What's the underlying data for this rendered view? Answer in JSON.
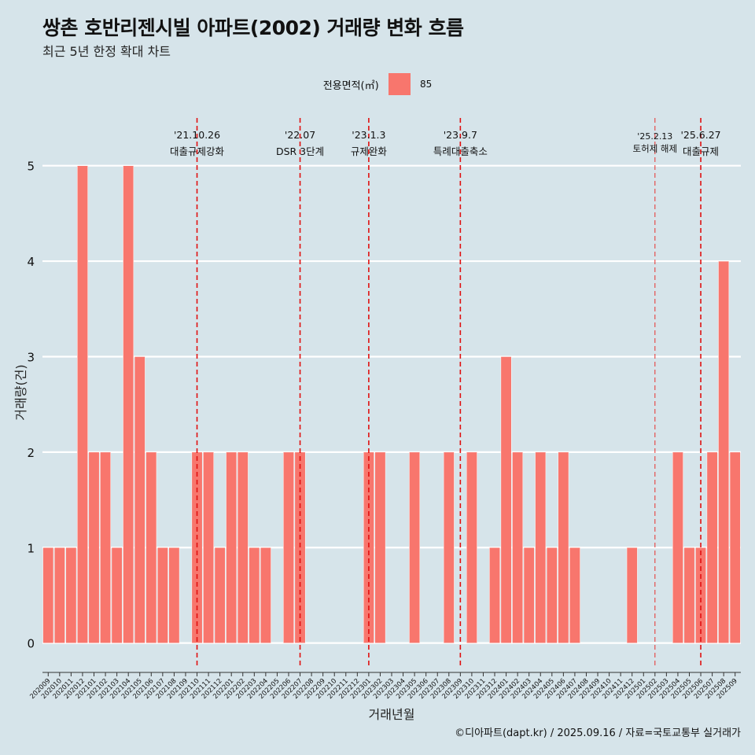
{
  "title": "쌍촌 호반리젠시빌 아파트(2002) 거래량 변화 흐름",
  "subtitle": "최근 5년 한정 확대 차트",
  "caption": "©디아파트(dapt.kr) / 2025.09.16 / 자료=국토교통부 실거래가",
  "legend": {
    "title": "전용면적(㎡)",
    "label": "85",
    "color": "#f8766d"
  },
  "chart_data": {
    "type": "bar",
    "xlabel": "거래년월",
    "ylabel": "거래량(건)",
    "ylim": [
      -0.25,
      5.5
    ],
    "yticks": [
      0,
      1,
      2,
      3,
      4,
      5
    ],
    "grid": true,
    "legend_position": "top",
    "categories": [
      "202009",
      "202010",
      "202011",
      "202012",
      "202101",
      "202102",
      "202103",
      "202104",
      "202105",
      "202106",
      "202107",
      "202108",
      "202109",
      "202110",
      "202111",
      "202112",
      "202201",
      "202202",
      "202203",
      "202204",
      "202205",
      "202206",
      "202207",
      "202208",
      "202209",
      "202210",
      "202211",
      "202212",
      "202301",
      "202302",
      "202303",
      "202304",
      "202305",
      "202306",
      "202307",
      "202308",
      "202309",
      "202310",
      "202311",
      "202312",
      "202401",
      "202402",
      "202403",
      "202404",
      "202405",
      "202406",
      "202407",
      "202408",
      "202409",
      "202410",
      "202411",
      "202412",
      "202501",
      "202502",
      "202503",
      "202504",
      "202505",
      "202506",
      "202507",
      "202508",
      "202509"
    ],
    "series": [
      {
        "name": "85",
        "color": "#f8766d",
        "values": [
          1,
          1,
          1,
          5,
          2,
          2,
          1,
          5,
          3,
          2,
          1,
          1,
          0,
          2,
          2,
          1,
          2,
          2,
          1,
          1,
          0,
          2,
          2,
          0,
          0,
          0,
          0,
          0,
          2,
          2,
          0,
          0,
          2,
          0,
          0,
          2,
          0,
          2,
          0,
          1,
          3,
          2,
          1,
          2,
          1,
          2,
          1,
          0,
          0,
          0,
          0,
          1,
          0,
          0,
          0,
          2,
          1,
          1,
          2,
          4,
          2
        ]
      }
    ],
    "annotations": [
      {
        "date": "'21.10.26",
        "text": "대출규제강화",
        "at": "202110",
        "style": "major"
      },
      {
        "date": "'22.07",
        "text": "DSR 3단계",
        "at": "202207",
        "style": "major"
      },
      {
        "date": "'23.1.3",
        "text": "규제완화",
        "at": "202301",
        "style": "major"
      },
      {
        "date": "'23.9.7",
        "text": "특례대출축소",
        "at": "202309",
        "style": "major"
      },
      {
        "date": "'25.2.13",
        "text": "토허제 해제",
        "at": "202502",
        "style": "minor"
      },
      {
        "date": "'25.6.27",
        "text": "대출규제",
        "at": "202506",
        "style": "major"
      }
    ]
  }
}
